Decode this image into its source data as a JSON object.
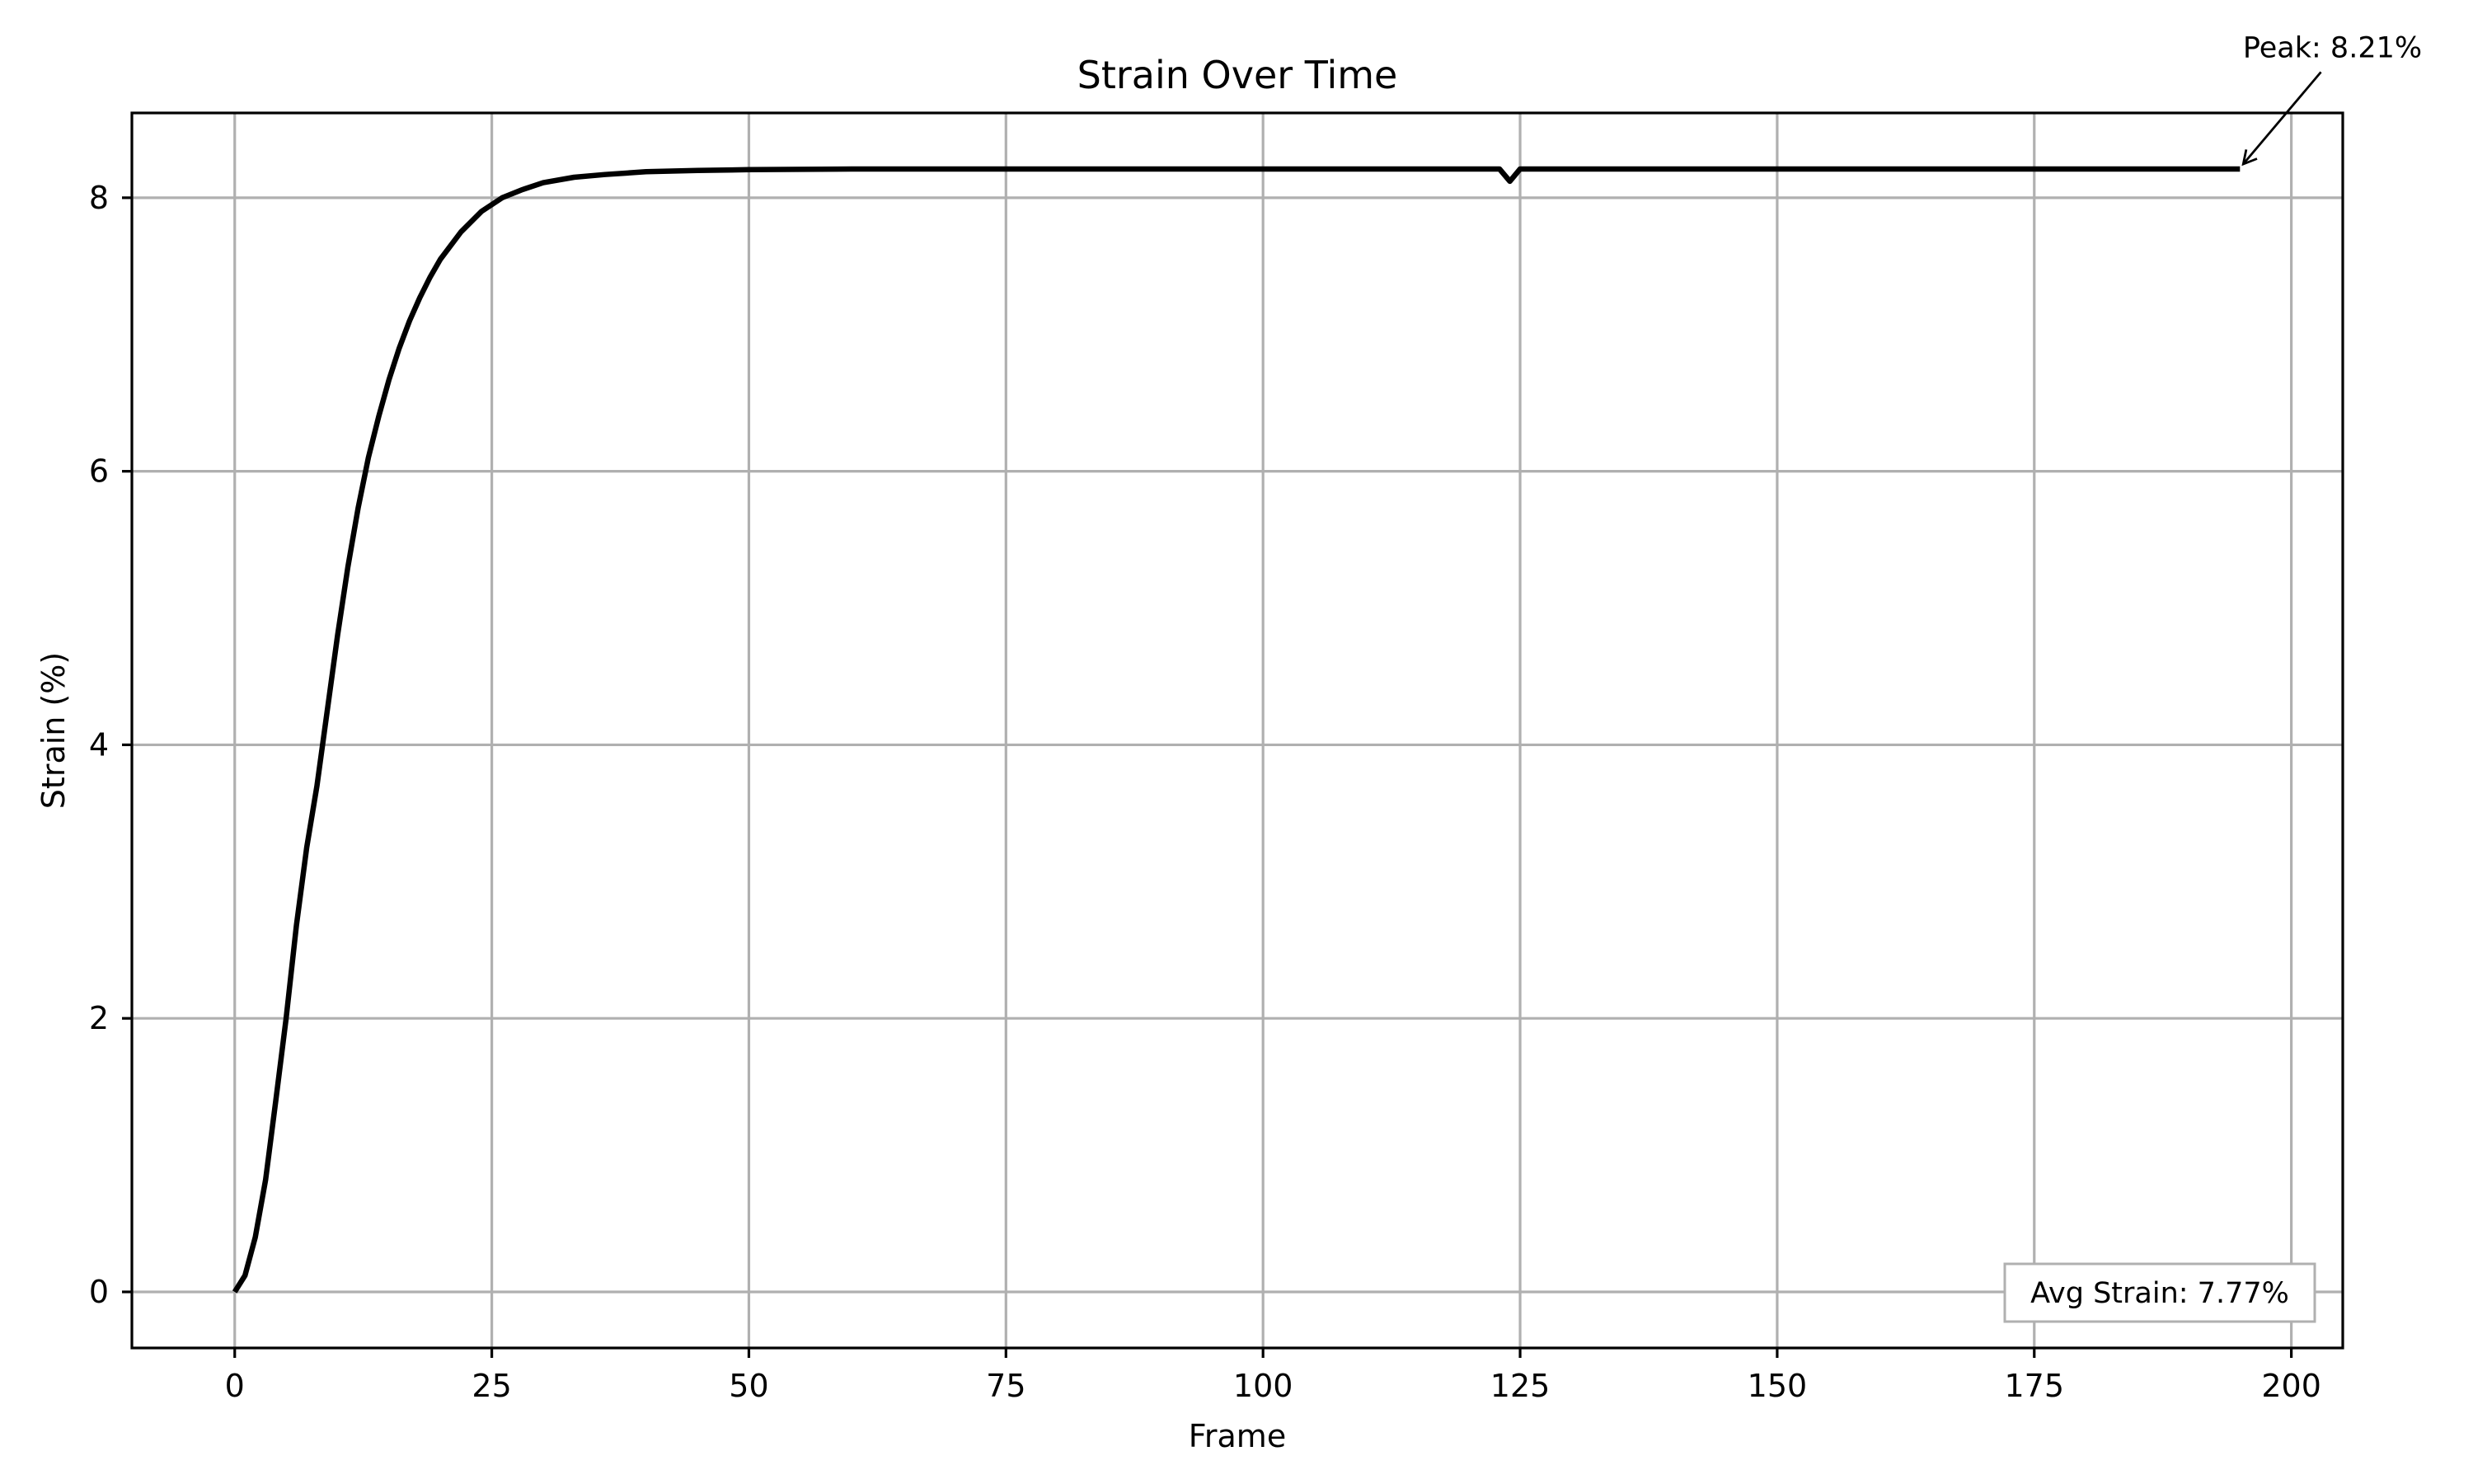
{
  "chart_data": {
    "type": "line",
    "title": "Strain Over Time",
    "xlabel": "Frame",
    "ylabel": "Strain (%)",
    "xlim": [
      -10,
      205
    ],
    "ylim": [
      -0.41,
      8.62
    ],
    "xticks": [
      0,
      25,
      50,
      75,
      100,
      125,
      150,
      175,
      200
    ],
    "yticks": [
      0,
      2,
      4,
      6,
      8
    ],
    "grid": true,
    "line_color": "#000000",
    "grid_color": "#b0b0b0",
    "series": [
      {
        "peak_value": 8.21,
        "x": [
          0,
          1,
          2,
          3,
          4,
          5,
          6,
          7,
          8,
          9,
          10,
          11,
          12,
          13,
          14,
          15,
          16,
          17,
          18,
          19,
          20,
          22,
          24,
          26,
          28,
          30,
          33,
          36,
          40,
          45,
          50,
          60,
          80,
          100,
          110,
          120,
          123,
          124,
          125,
          130,
          150,
          175,
          195
        ],
        "y": [
          0.0,
          0.12,
          0.4,
          0.82,
          1.4,
          2.0,
          2.68,
          3.25,
          3.7,
          4.25,
          4.8,
          5.3,
          5.73,
          6.1,
          6.4,
          6.67,
          6.9,
          7.1,
          7.27,
          7.42,
          7.55,
          7.75,
          7.9,
          8.0,
          8.06,
          8.11,
          8.15,
          8.17,
          8.19,
          8.2,
          8.205,
          8.21,
          8.21,
          8.21,
          8.21,
          8.21,
          8.21,
          8.12,
          8.21,
          8.21,
          8.21,
          8.21,
          8.21
        ]
      }
    ],
    "annotations": [
      {
        "text": "Peak: 8.21%",
        "x": 195,
        "y": 8.21,
        "text_x": 204,
        "text_y": 9.1,
        "arrow": true
      }
    ],
    "text_box": {
      "text": "Avg Strain: 7.77%",
      "placement": "lower-right"
    }
  }
}
